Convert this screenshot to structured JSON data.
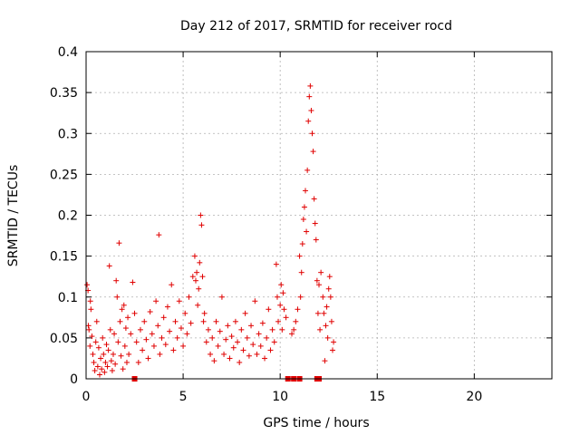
{
  "chart_data": {
    "type": "scatter",
    "title": "Day 212 of 2017, SRMTID for receiver rocd",
    "xlabel": "GPS time / hours",
    "ylabel": "SRMTID / TECUs",
    "xlim": [
      0,
      24
    ],
    "ylim": [
      0,
      0.4
    ],
    "xticks": [
      "0",
      "5",
      "10",
      "15",
      "20"
    ],
    "yticks": [
      "0",
      "0.05",
      "0.1",
      "0.15",
      "0.2",
      "0.25",
      "0.3",
      "0.35",
      "0.4"
    ],
    "grid": true,
    "marker": "+",
    "color": "#e00000",
    "series": [
      {
        "name": "SRMTID",
        "points": [
          [
            0.05,
            0.115
          ],
          [
            0.1,
            0.108
          ],
          [
            0.12,
            0.065
          ],
          [
            0.15,
            0.06
          ],
          [
            0.2,
            0.04
          ],
          [
            0.22,
            0.095
          ],
          [
            0.25,
            0.085
          ],
          [
            0.3,
            0.052
          ],
          [
            0.35,
            0.03
          ],
          [
            0.4,
            0.02
          ],
          [
            0.45,
            0.01
          ],
          [
            0.5,
            0.045
          ],
          [
            0.55,
            0.07
          ],
          [
            0.6,
            0.015
          ],
          [
            0.65,
            0.038
          ],
          [
            0.7,
            0.005
          ],
          [
            0.75,
            0.025
          ],
          [
            0.8,
            0.012
          ],
          [
            0.85,
            0.05
          ],
          [
            0.9,
            0.03
          ],
          [
            0.95,
            0.008
          ],
          [
            1.0,
            0.02
          ],
          [
            1.05,
            0.042
          ],
          [
            1.1,
            0.015
          ],
          [
            1.15,
            0.035
          ],
          [
            1.2,
            0.138
          ],
          [
            1.25,
            0.06
          ],
          [
            1.3,
            0.022
          ],
          [
            1.35,
            0.01
          ],
          [
            1.4,
            0.03
          ],
          [
            1.45,
            0.055
          ],
          [
            1.5,
            0.018
          ],
          [
            1.55,
            0.12
          ],
          [
            1.6,
            0.1
          ],
          [
            1.65,
            0.045
          ],
          [
            1.7,
            0.166
          ],
          [
            1.75,
            0.07
          ],
          [
            1.8,
            0.028
          ],
          [
            1.85,
            0.085
          ],
          [
            1.9,
            0.012
          ],
          [
            1.95,
            0.09
          ],
          [
            2.0,
            0.04
          ],
          [
            2.05,
            0.062
          ],
          [
            2.1,
            0.02
          ],
          [
            2.15,
            0.075
          ],
          [
            2.2,
            0.03
          ],
          [
            2.3,
            0.055
          ],
          [
            2.4,
            0.118
          ],
          [
            2.5,
            0.08
          ],
          [
            2.6,
            0.045
          ],
          [
            2.7,
            0.02
          ],
          [
            2.8,
            0.06
          ],
          [
            2.9,
            0.035
          ],
          [
            3.0,
            0.07
          ],
          [
            3.1,
            0.048
          ],
          [
            3.2,
            0.025
          ],
          [
            3.3,
            0.082
          ],
          [
            3.4,
            0.055
          ],
          [
            3.5,
            0.04
          ],
          [
            3.6,
            0.095
          ],
          [
            3.7,
            0.065
          ],
          [
            3.75,
            0.176
          ],
          [
            3.8,
            0.03
          ],
          [
            3.9,
            0.05
          ],
          [
            4.0,
            0.075
          ],
          [
            4.1,
            0.042
          ],
          [
            4.2,
            0.088
          ],
          [
            4.3,
            0.058
          ],
          [
            4.4,
            0.115
          ],
          [
            4.5,
            0.035
          ],
          [
            4.6,
            0.07
          ],
          [
            4.7,
            0.05
          ],
          [
            4.8,
            0.095
          ],
          [
            4.9,
            0.062
          ],
          [
            5.0,
            0.04
          ],
          [
            5.1,
            0.08
          ],
          [
            5.2,
            0.055
          ],
          [
            5.3,
            0.1
          ],
          [
            5.4,
            0.068
          ],
          [
            5.5,
            0.125
          ],
          [
            5.6,
            0.15
          ],
          [
            5.65,
            0.12
          ],
          [
            5.7,
            0.13
          ],
          [
            5.75,
            0.09
          ],
          [
            5.8,
            0.11
          ],
          [
            5.85,
            0.142
          ],
          [
            5.9,
            0.2
          ],
          [
            5.95,
            0.188
          ],
          [
            6.0,
            0.125
          ],
          [
            6.05,
            0.07
          ],
          [
            6.1,
            0.08
          ],
          [
            6.2,
            0.045
          ],
          [
            6.3,
            0.06
          ],
          [
            6.4,
            0.03
          ],
          [
            6.5,
            0.05
          ],
          [
            6.6,
            0.022
          ],
          [
            6.7,
            0.07
          ],
          [
            6.8,
            0.04
          ],
          [
            6.9,
            0.058
          ],
          [
            7.0,
            0.1
          ],
          [
            7.1,
            0.03
          ],
          [
            7.2,
            0.048
          ],
          [
            7.3,
            0.065
          ],
          [
            7.4,
            0.025
          ],
          [
            7.5,
            0.052
          ],
          [
            7.6,
            0.038
          ],
          [
            7.7,
            0.07
          ],
          [
            7.8,
            0.045
          ],
          [
            7.9,
            0.02
          ],
          [
            8.0,
            0.06
          ],
          [
            8.1,
            0.035
          ],
          [
            8.2,
            0.08
          ],
          [
            8.3,
            0.05
          ],
          [
            8.4,
            0.028
          ],
          [
            8.5,
            0.065
          ],
          [
            8.6,
            0.042
          ],
          [
            8.7,
            0.095
          ],
          [
            8.8,
            0.03
          ],
          [
            8.9,
            0.055
          ],
          [
            9.0,
            0.04
          ],
          [
            9.1,
            0.068
          ],
          [
            9.2,
            0.025
          ],
          [
            9.3,
            0.05
          ],
          [
            9.4,
            0.085
          ],
          [
            9.5,
            0.035
          ],
          [
            9.6,
            0.06
          ],
          [
            9.7,
            0.045
          ],
          [
            9.8,
            0.14
          ],
          [
            9.85,
            0.1
          ],
          [
            9.9,
            0.07
          ],
          [
            10.0,
            0.09
          ],
          [
            10.05,
            0.115
          ],
          [
            10.1,
            0.06
          ],
          [
            10.15,
            0.105
          ],
          [
            10.2,
            0.085
          ],
          [
            10.3,
            0.075
          ],
          [
            10.6,
            0.055
          ],
          [
            10.7,
            0.06
          ],
          [
            10.8,
            0.07
          ],
          [
            10.9,
            0.085
          ],
          [
            11.0,
            0.15
          ],
          [
            11.05,
            0.1
          ],
          [
            11.1,
            0.13
          ],
          [
            11.15,
            0.165
          ],
          [
            11.2,
            0.195
          ],
          [
            11.25,
            0.21
          ],
          [
            11.3,
            0.23
          ],
          [
            11.35,
            0.18
          ],
          [
            11.4,
            0.255
          ],
          [
            11.45,
            0.315
          ],
          [
            11.5,
            0.345
          ],
          [
            11.55,
            0.358
          ],
          [
            11.6,
            0.328
          ],
          [
            11.65,
            0.3
          ],
          [
            11.7,
            0.278
          ],
          [
            11.75,
            0.22
          ],
          [
            11.8,
            0.19
          ],
          [
            11.85,
            0.17
          ],
          [
            11.9,
            0.12
          ],
          [
            11.95,
            0.08
          ],
          [
            12.0,
            0.115
          ],
          [
            12.05,
            0.06
          ],
          [
            12.1,
            0.13
          ],
          [
            12.2,
            0.1
          ],
          [
            12.25,
            0.08
          ],
          [
            12.3,
            0.022
          ],
          [
            12.35,
            0.065
          ],
          [
            12.4,
            0.088
          ],
          [
            12.45,
            0.05
          ],
          [
            12.5,
            0.11
          ],
          [
            12.55,
            0.125
          ],
          [
            12.6,
            0.1
          ],
          [
            12.65,
            0.07
          ],
          [
            12.7,
            0.035
          ],
          [
            12.75,
            0.045
          ]
        ]
      }
    ],
    "zero_markers_x": [
      2.5,
      10.4,
      10.7,
      11.0,
      11.9,
      12.0
    ]
  }
}
